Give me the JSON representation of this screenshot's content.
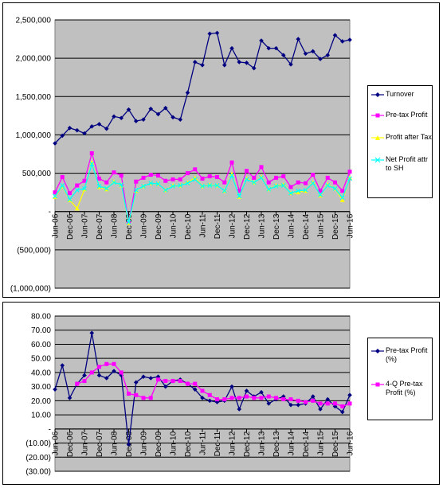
{
  "chart_data": [
    {
      "type": "line",
      "title": "",
      "xlabel": "",
      "ylabel": "",
      "ylim": [
        -1000000,
        2500000
      ],
      "y_ticks": [
        -1000000,
        -500000,
        0,
        500000,
        1000000,
        1500000,
        2000000,
        2500000
      ],
      "y_tick_labels": [
        "(1,000,000)",
        "(500,000)",
        "-",
        "500,000",
        "1,000,000",
        "1,500,000",
        "2,000,000",
        "2,500,000"
      ],
      "x_tick_labels": [
        "Jun-06",
        "Dec-06",
        "Jun-07",
        "Dec-07",
        "Jun-08",
        "Dec-08",
        "Jun-09",
        "Dec-09",
        "Jun-10",
        "Dec-10",
        "Jun-11",
        "Dec-11",
        "Jun-12",
        "Dec-12",
        "Jun-13",
        "Dec-13",
        "Jun-14",
        "Dec-14",
        "Jun-15",
        "Dec-15",
        "Jun-16"
      ],
      "legend_position": "right",
      "background": "#c0c0c0",
      "grid": "horizontal",
      "series": [
        {
          "name": "Turnover",
          "color": "#000080",
          "marker": "diamond",
          "values": [
            890000,
            990000,
            1090000,
            1060000,
            1020000,
            1110000,
            1140000,
            1080000,
            1240000,
            1220000,
            1330000,
            1180000,
            1200000,
            1340000,
            1270000,
            1350000,
            1230000,
            1200000,
            1550000,
            1950000,
            1910000,
            2320000,
            2330000,
            1910000,
            2130000,
            1950000,
            1940000,
            1870000,
            2230000,
            2130000,
            2130000,
            2040000,
            1920000,
            2250000,
            2060000,
            2090000,
            1990000,
            2040000,
            2300000,
            2220000,
            2240000
          ]
        },
        {
          "name": "Pre-tax Profit",
          "color": "#ff00ff",
          "marker": "square",
          "values": [
            250000,
            450000,
            240000,
            340000,
            400000,
            760000,
            430000,
            380000,
            510000,
            470000,
            -150000,
            390000,
            440000,
            480000,
            470000,
            400000,
            420000,
            420000,
            500000,
            550000,
            430000,
            460000,
            450000,
            380000,
            640000,
            270000,
            530000,
            440000,
            580000,
            380000,
            440000,
            460000,
            320000,
            380000,
            370000,
            480000,
            270000,
            440000,
            380000,
            270000,
            520000
          ]
        },
        {
          "name": "Profit after Tax",
          "color": "#ffff00",
          "marker": "triangle",
          "values": [
            190000,
            330000,
            150000,
            40000,
            290000,
            640000,
            320000,
            290000,
            390000,
            340000,
            -150000,
            270000,
            330000,
            370000,
            360000,
            280000,
            340000,
            340000,
            380000,
            440000,
            330000,
            350000,
            340000,
            270000,
            490000,
            190000,
            430000,
            380000,
            450000,
            290000,
            340000,
            350000,
            240000,
            250000,
            270000,
            380000,
            210000,
            350000,
            300000,
            150000,
            440000
          ]
        },
        {
          "name": "Net Profit attr to SH",
          "color": "#00ffff",
          "marker": "cross",
          "values": [
            200000,
            340000,
            160000,
            280000,
            300000,
            620000,
            330000,
            300000,
            380000,
            350000,
            -140000,
            280000,
            330000,
            370000,
            360000,
            280000,
            330000,
            340000,
            370000,
            420000,
            330000,
            340000,
            340000,
            270000,
            470000,
            200000,
            420000,
            380000,
            440000,
            290000,
            330000,
            340000,
            240000,
            270000,
            280000,
            370000,
            220000,
            340000,
            300000,
            180000,
            430000
          ]
        }
      ]
    },
    {
      "type": "line",
      "title": "",
      "xlabel": "",
      "ylabel": "",
      "ylim": [
        -30,
        80
      ],
      "y_ticks": [
        -30,
        -20,
        -10,
        0,
        10,
        20,
        30,
        40,
        50,
        60,
        70,
        80
      ],
      "y_tick_labels": [
        "(30.00)",
        "(20.00)",
        "(10.00)",
        "-",
        "10.00",
        "20.00",
        "30.00",
        "40.00",
        "50.00",
        "60.00",
        "70.00",
        "80.00"
      ],
      "x_tick_labels": [
        "Jun-06",
        "Dec-06",
        "Jun-07",
        "Dec-07",
        "Jun-08",
        "Dec-08",
        "Jun-09",
        "Dec-09",
        "Jun-10",
        "Dec-10",
        "Jun-11",
        "Dec-11",
        "Jun-12",
        "Dec-12",
        "Jun-13",
        "Dec-13",
        "Jun-14",
        "Dec-14",
        "Jun-15",
        "Dec-15",
        "Jun-16"
      ],
      "legend_position": "right",
      "background": "#c0c0c0",
      "grid": "horizontal",
      "series": [
        {
          "name": "Pre-tax Profit (%)",
          "color": "#000080",
          "marker": "diamond",
          "values": [
            28,
            45,
            22,
            32,
            38,
            68,
            38,
            36,
            41,
            38,
            -11,
            33,
            37,
            36,
            37,
            30,
            34,
            35,
            32,
            28,
            22,
            20,
            19,
            20,
            30,
            14,
            27,
            23,
            26,
            18,
            21,
            23,
            17,
            17,
            18,
            23,
            14,
            21,
            16,
            12,
            24
          ]
        },
        {
          "name": "4-Q Pre-tax Profit (%)",
          "color": "#ff00ff",
          "marker": "square",
          "values": [
            null,
            null,
            null,
            32,
            34,
            40,
            44,
            46,
            46,
            40,
            25,
            24,
            22,
            22,
            35,
            34,
            34,
            34,
            32,
            32,
            27,
            24,
            21,
            21,
            22,
            22,
            23,
            22,
            22,
            23,
            22,
            21,
            21,
            20,
            19,
            20,
            18,
            18,
            18,
            16,
            18
          ]
        }
      ]
    }
  ]
}
